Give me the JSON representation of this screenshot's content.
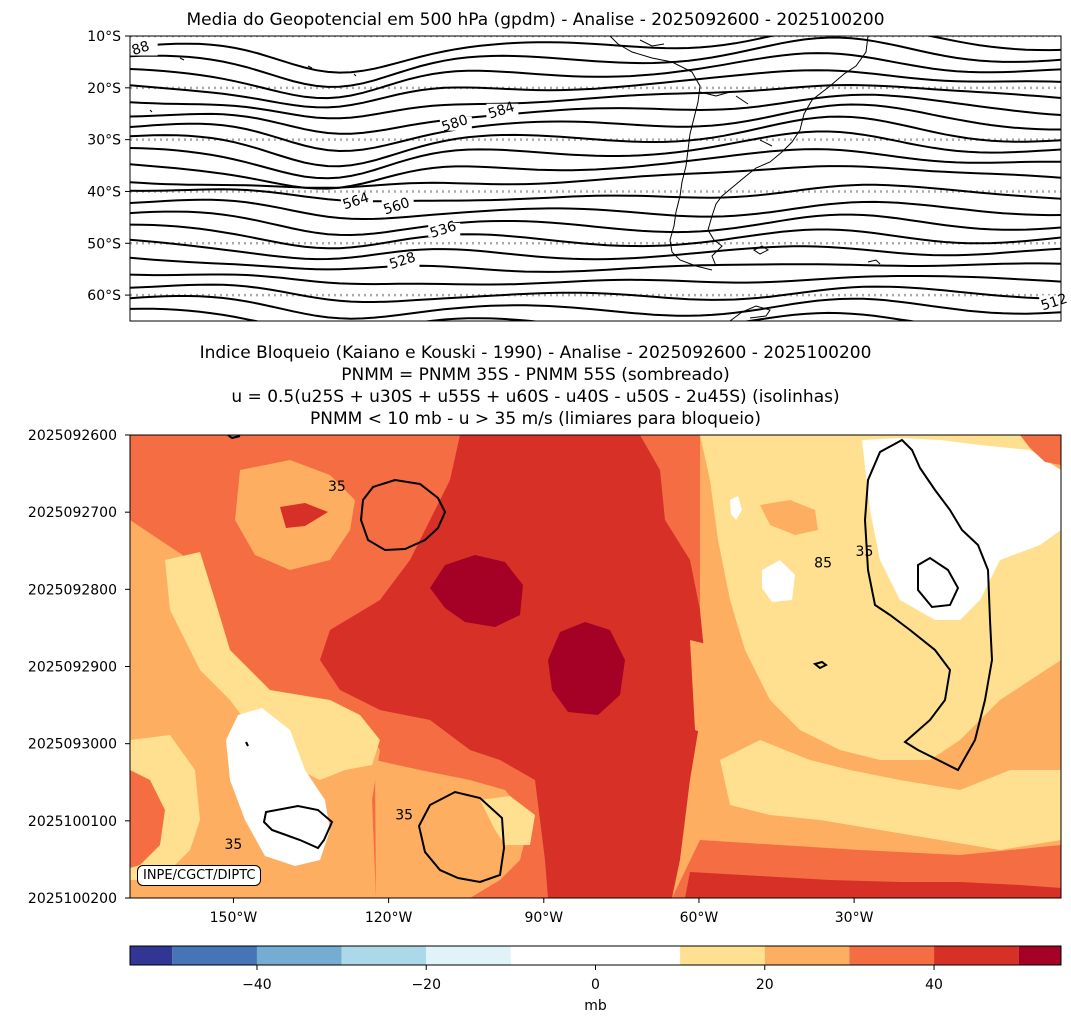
{
  "top_title": "Media do Geopotencial em 500 hPa (gpdm) - Analise - 2025092600 - 2025100200",
  "bottom_titles": [
    "Indice Bloqueio (Kaiano e Kouski - 1990) - Analise - 2025092600 - 2025100200",
    "PNMM = PNMM 35S - PNMM 55S (sombreado)",
    "u = 0.5(u25S + u30S + u55S + u60S - u40S - u50S - 2u45S) (isolinhas)",
    "PNMM < 10 mb - u > 35 m/s (limiares para bloqueio)"
  ],
  "credit": "INPE/CGCT/DIPTC",
  "chart_data": [
    {
      "type": "contour",
      "title": "Media do Geopotencial em 500 hPa (gpdm) - Analise - 2025092600 - 2025100200",
      "ylabel": "",
      "ylim": [
        -65,
        -10
      ],
      "xlim": [
        -170,
        -10
      ],
      "yticks": [
        {
          "value": -10,
          "label": "10°S"
        },
        {
          "value": -20,
          "label": "20°S"
        },
        {
          "value": -30,
          "label": "30°S"
        },
        {
          "value": -40,
          "label": "40°S"
        },
        {
          "value": -50,
          "label": "50°S"
        },
        {
          "value": -60,
          "label": "60°S"
        }
      ],
      "gridlines_lat": [
        -10,
        -20,
        -30,
        -40,
        -50,
        -60
      ],
      "contour_labels": [
        {
          "text": "584",
          "lon": -106,
          "lat": -25
        },
        {
          "text": "580",
          "lon": -114,
          "lat": -27.5
        },
        {
          "text": "564",
          "lon": -131,
          "lat": -42.5
        },
        {
          "text": "560",
          "lon": -124,
          "lat": -43.5
        },
        {
          "text": "536",
          "lon": -116,
          "lat": -48
        },
        {
          "text": "528",
          "lon": -123,
          "lat": -54
        },
        {
          "text": "512",
          "lon": -11,
          "lat": -62
        },
        {
          "text": "88",
          "lon": -168,
          "lat": -13
        }
      ],
      "contour_levels": [
        588,
        584,
        580,
        576,
        572,
        568,
        564,
        560,
        556,
        552,
        548,
        544,
        540,
        536,
        532,
        528,
        524,
        520,
        516,
        512,
        508
      ]
    },
    {
      "type": "heatmap",
      "title": "Indice Bloqueio (Kaiano e Kouski - 1990) - Analise - 2025092600 - 2025100200",
      "xlim": [
        -170,
        10
      ],
      "xticks": [
        {
          "value": -150,
          "label": "150°W"
        },
        {
          "value": -120,
          "label": "120°W"
        },
        {
          "value": -90,
          "label": "90°W"
        },
        {
          "value": -60,
          "label": "60°W"
        },
        {
          "value": -30,
          "label": "30°W"
        }
      ],
      "yticks": [
        "2025092600",
        "2025092700",
        "2025092800",
        "2025092900",
        "2025093000",
        "2025100100",
        "2025100200"
      ],
      "contour_labels": [
        {
          "text": "35",
          "lon": -130,
          "t": 0.66
        },
        {
          "text": "35",
          "lon": -28,
          "t": 1.5
        },
        {
          "text": "85",
          "lon": -36,
          "t": 1.65
        },
        {
          "text": "35",
          "lon": -117,
          "t": 4.92
        },
        {
          "text": "35",
          "lon": -150,
          "t": 5.3
        }
      ],
      "colorbar": {
        "label": "mb",
        "range": [
          -55,
          55
        ],
        "ticks": [
          -40,
          -20,
          0,
          20,
          40
        ],
        "levels": [
          {
            "from": -55,
            "to": -50,
            "color": "#313695"
          },
          {
            "from": -50,
            "to": -40,
            "color": "#4575b4"
          },
          {
            "from": -40,
            "to": -30,
            "color": "#74add1"
          },
          {
            "from": -30,
            "to": -20,
            "color": "#abd9e9"
          },
          {
            "from": -20,
            "to": -10,
            "color": "#e0f3f8"
          },
          {
            "from": -10,
            "to": 10,
            "color": "#ffffff"
          },
          {
            "from": 10,
            "to": 20,
            "color": "#fee090"
          },
          {
            "from": 20,
            "to": 30,
            "color": "#fdae61"
          },
          {
            "from": 30,
            "to": 40,
            "color": "#f46d43"
          },
          {
            "from": 40,
            "to": 50,
            "color": "#d73027"
          },
          {
            "from": 50,
            "to": 55,
            "color": "#a50026"
          }
        ]
      }
    }
  ]
}
